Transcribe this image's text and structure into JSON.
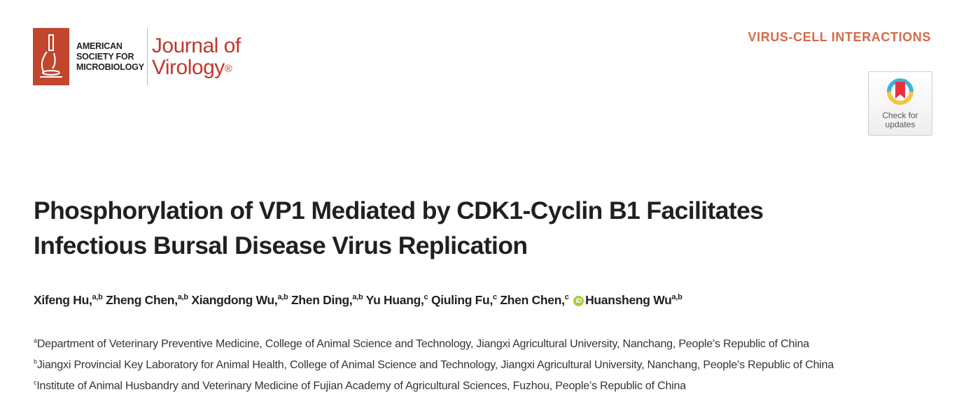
{
  "header": {
    "society_logo_text": [
      "AMERICAN",
      "SOCIETY FOR",
      "MICROBIOLOGY"
    ],
    "journal_name_line1": "Journal of",
    "journal_name_line2": "Virology",
    "registered_mark": "®",
    "section_label": "VIRUS-CELL INTERACTIONS",
    "check_updates_line1": "Check for",
    "check_updates_line2": "updates"
  },
  "article": {
    "title_line1": "Phosphorylation of VP1 Mediated by CDK1-Cyclin B1 Facilitates",
    "title_line2": "Infectious Bursal Disease Virus Replication",
    "authors": [
      {
        "name": "Xifeng Hu,",
        "aff": "a,b"
      },
      {
        "name": "Zheng Chen,",
        "aff": "a,b"
      },
      {
        "name": "Xiangdong Wu,",
        "aff": "a,b"
      },
      {
        "name": "Zhen Ding,",
        "aff": "a,b"
      },
      {
        "name": "Yu Huang,",
        "aff": "c"
      },
      {
        "name": "Qiuling Fu,",
        "aff": "c"
      },
      {
        "name": "Zhen Chen,",
        "aff": "c"
      },
      {
        "name": "Huansheng Wu",
        "aff": "a,b",
        "orcid": "iD"
      }
    ],
    "affiliations": [
      {
        "mark": "a",
        "text": "Department of Veterinary Preventive Medicine, College of Animal Science and Technology, Jiangxi Agricultural University, Nanchang, People’s Republic of China"
      },
      {
        "mark": "b",
        "text": "Jiangxi Provincial Key Laboratory for Animal Health, College of Animal Science and Technology, Jiangxi Agricultural University, Nanchang, People’s Republic of China"
      },
      {
        "mark": "c",
        "text": "Institute of Animal Husbandry and Veterinary Medicine of Fujian Academy of Agricultural Sciences, Fuzhou, People’s Republic of China"
      }
    ]
  },
  "colors": {
    "brand_red": "#c1462d",
    "section": "#d46a4a",
    "orcid": "#a6ce39"
  }
}
